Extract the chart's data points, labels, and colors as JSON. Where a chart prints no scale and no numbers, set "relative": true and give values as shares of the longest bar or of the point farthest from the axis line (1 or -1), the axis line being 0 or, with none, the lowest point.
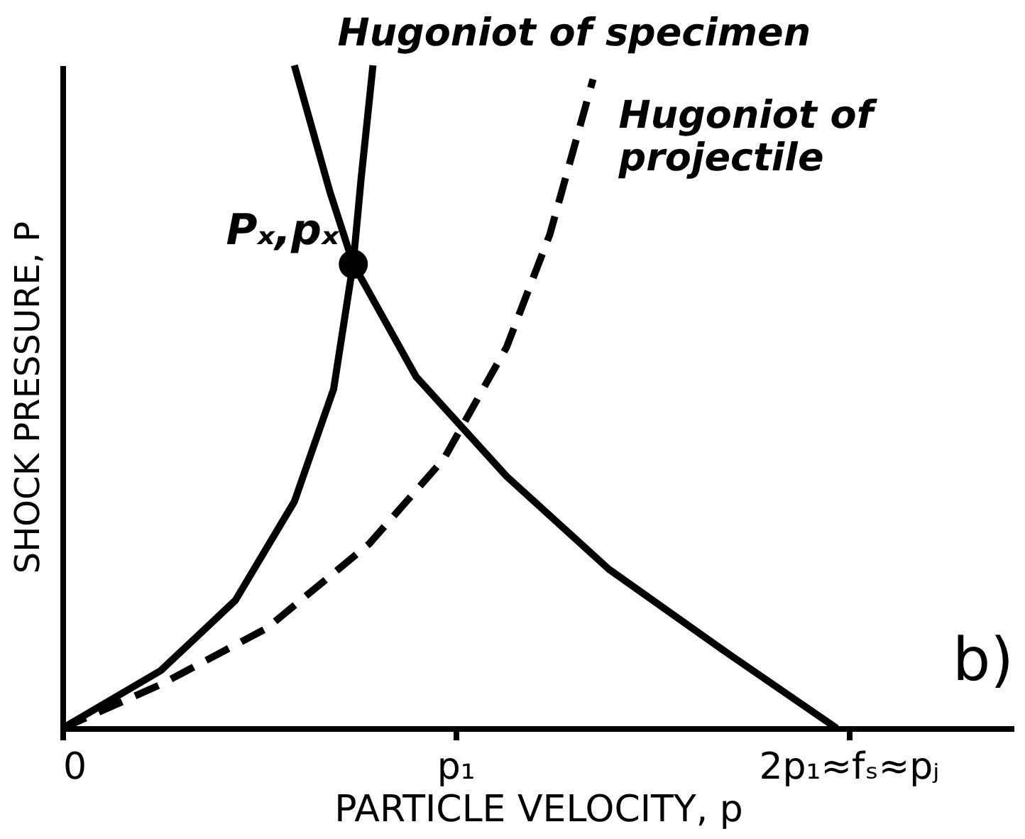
{
  "chart_data": {
    "type": "line",
    "relative": true,
    "xlabel": "PARTICLE VELOCITY, p",
    "ylabel": "SHOCK PRESSURE, P",
    "xlim": [
      0,
      2.42
    ],
    "xticks": [
      0,
      {
        "value": 1,
        "label": "p₁"
      },
      {
        "value": 2,
        "label": "2p₁≈fₛ≈pⱼ"
      }
    ],
    "grid": false,
    "series": [
      {
        "color": "#000000",
        "line_style": "solid",
        "x": [
          0,
          0.25,
          0.44,
          0.59,
          0.69,
          0.74,
          0.76,
          0.79
        ],
        "values": [
          0,
          0.087,
          0.193,
          0.342,
          0.512,
          0.703,
          0.83,
          1.0
        ]
      },
      {
        "color": "#000000",
        "line_style": "solid",
        "x": [
          0.59,
          0.68,
          0.74,
          0.9,
          1.13,
          1.39,
          1.7,
          1.97
        ],
        "values": [
          1.0,
          0.81,
          0.7,
          0.53,
          0.38,
          0.24,
          0.11,
          0
        ]
      },
      {
        "color": "#000000",
        "line_style": "dashed",
        "x": [
          0,
          0.25,
          0.52,
          0.78,
          0.97,
          1.13,
          1.24,
          1.35
        ],
        "values": [
          0,
          0.066,
          0.151,
          0.278,
          0.406,
          0.575,
          0.745,
          0.979
        ]
      },
      {
        "type": "scatter",
        "marker": "circle",
        "color": "#000000",
        "x": [
          0.74
        ],
        "values": [
          0.7
        ]
      }
    ],
    "annotations": [
      {
        "text": "Pₓ,pₓ",
        "x": 0.74,
        "y": 0.7
      },
      {
        "text": "Hugoniot of specimen",
        "x": 0.79,
        "y": 1.0
      },
      {
        "text": "Hugoniot of projectile",
        "x": 1.35,
        "y": 0.979
      },
      "b)"
    ]
  }
}
